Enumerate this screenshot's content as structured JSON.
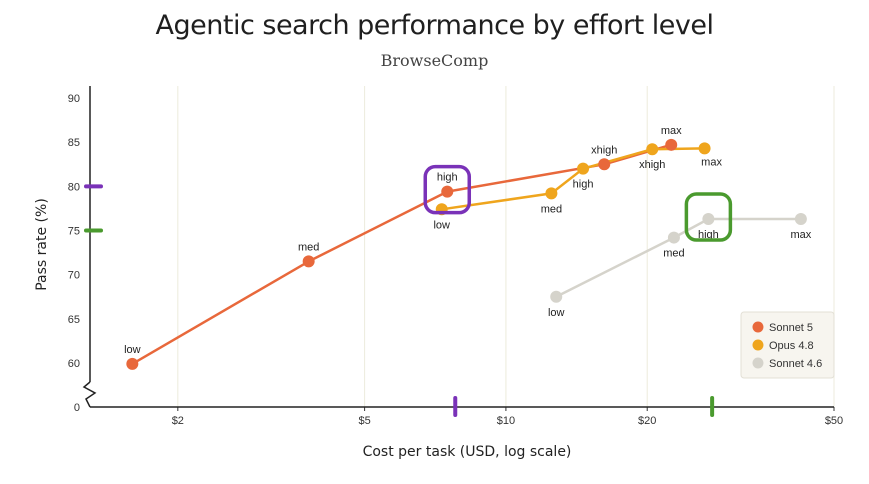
{
  "chart_data": {
    "type": "line",
    "title": "Agentic search performance by effort level",
    "subtitle": "BrowseComp",
    "xlabel": "Cost per task (USD, log scale)",
    "ylabel": "Pass rate (%)",
    "x_scale": "log",
    "xlim": [
      1.3,
      50
    ],
    "ylim": [
      56,
      91
    ],
    "y_axis_break": true,
    "x_ticks": [
      {
        "value": 2,
        "label": "$2"
      },
      {
        "value": 5,
        "label": "$5"
      },
      {
        "value": 10,
        "label": "$10"
      },
      {
        "value": 20,
        "label": "$20"
      },
      {
        "value": 50,
        "label": "$50"
      }
    ],
    "y_ticks": [
      {
        "value": 60,
        "label": "60"
      },
      {
        "value": 65,
        "label": "65"
      },
      {
        "value": 70,
        "label": "70"
      },
      {
        "value": 75,
        "label": "75"
      },
      {
        "value": 80,
        "label": "80"
      },
      {
        "value": 85,
        "label": "85"
      },
      {
        "value": 90,
        "label": "90"
      }
    ],
    "y_zero_label": "0",
    "grid": "vertical",
    "legend_position": "bottom-right",
    "series": [
      {
        "name": "Sonnet 5",
        "color": "#e8683b",
        "points": [
          {
            "x": 1.6,
            "y": 59.9,
            "label": "low"
          },
          {
            "x": 3.8,
            "y": 71.5,
            "label": "med"
          },
          {
            "x": 7.5,
            "y": 79.4,
            "label": "high"
          },
          {
            "x": 16.2,
            "y": 82.5,
            "label": "xhigh"
          },
          {
            "x": 22.5,
            "y": 84.7,
            "label": "max"
          }
        ]
      },
      {
        "name": "Opus 4.8",
        "color": "#efa51d",
        "points": [
          {
            "x": 7.3,
            "y": 77.4,
            "label": "low"
          },
          {
            "x": 12.5,
            "y": 79.2,
            "label": "med"
          },
          {
            "x": 14.6,
            "y": 82.0,
            "label": "high"
          },
          {
            "x": 20.5,
            "y": 84.2,
            "label": "xhigh"
          },
          {
            "x": 26.5,
            "y": 84.3,
            "label": "max"
          }
        ]
      },
      {
        "name": "Sonnet 4.6",
        "color": "#d5d3cb",
        "points": [
          {
            "x": 12.8,
            "y": 67.5,
            "label": "low"
          },
          {
            "x": 22.8,
            "y": 74.2,
            "label": "med"
          },
          {
            "x": 27.0,
            "y": 76.3,
            "label": "high"
          },
          {
            "x": 42.5,
            "y": 76.3,
            "label": "max"
          }
        ]
      }
    ],
    "annotations": [
      {
        "type": "box",
        "color": "#7a32b8",
        "target_series": "Sonnet 5",
        "target_label": "high"
      },
      {
        "type": "box",
        "color": "#4a9a2e",
        "target_series": "Sonnet 4.6",
        "target_label": "high"
      },
      {
        "type": "y-marker",
        "color": "#7a32b8",
        "value": 80
      },
      {
        "type": "y-marker",
        "color": "#4a9a2e",
        "value": 75
      },
      {
        "type": "x-marker",
        "color": "#7a32b8",
        "value": 7.8
      },
      {
        "type": "x-marker",
        "color": "#4a9a2e",
        "value": 27.5
      }
    ]
  }
}
